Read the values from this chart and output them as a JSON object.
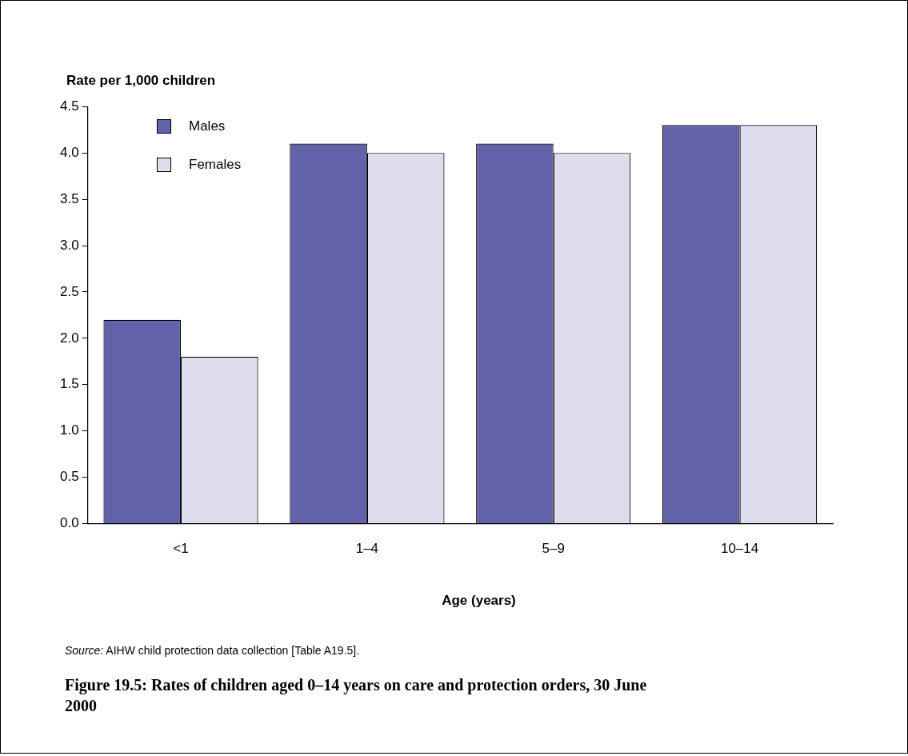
{
  "chart_data": {
    "type": "bar",
    "title": "Figure 19.5: Rates of children aged 0–14 years on care and protection orders, 30 June 2000",
    "ylabel": "Rate per 1,000 children",
    "xlabel": "Age (years)",
    "annotations": [
      "Source: AIHW child protection data collection [Table A19.5]."
    ],
    "categories": [
      "<1",
      "1–4",
      "5–9",
      "10–14"
    ],
    "series": [
      {
        "name": "Males",
        "color": "#6262aa",
        "values": [
          2.2,
          4.1,
          4.1,
          4.3
        ]
      },
      {
        "name": "Females",
        "color": "#dedded",
        "values": [
          1.8,
          4.0,
          4.0,
          4.3
        ]
      }
    ],
    "ylim": [
      0,
      4.5
    ],
    "yticks": [
      {
        "value": 0,
        "label": "0.0"
      },
      {
        "value": 0.5,
        "label": "0.5"
      },
      {
        "value": 1,
        "label": "1.0"
      },
      {
        "value": 1.5,
        "label": "1.5"
      },
      {
        "value": 2,
        "label": "2.0"
      },
      {
        "value": 2.5,
        "label": "2.5"
      },
      {
        "value": 3,
        "label": "3.0"
      },
      {
        "value": 3.5,
        "label": "3.5"
      },
      {
        "value": 4,
        "label": "4.0"
      },
      {
        "value": 4.5,
        "label": "4.5"
      }
    ],
    "grid": false,
    "legend": "top left"
  }
}
